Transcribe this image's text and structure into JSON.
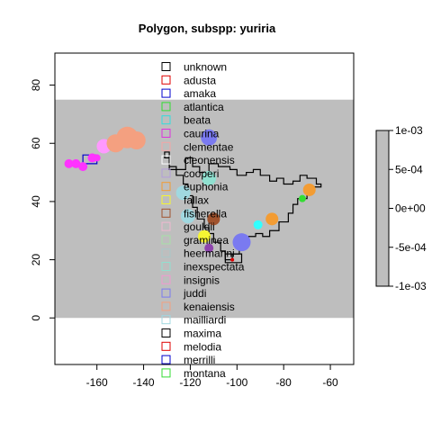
{
  "chart_data": {
    "type": "scatter",
    "title": "Polygon, subspp: yuriria",
    "xlabel": "",
    "ylabel": "",
    "xlim": [
      -178,
      -50
    ],
    "ylim": [
      -16,
      91
    ],
    "x_ticks": [
      -160,
      -140,
      -120,
      -100,
      -80,
      -60
    ],
    "y_ticks": [
      0,
      20,
      40,
      60,
      80
    ],
    "background_band": {
      "y_from": 0,
      "y_to": 75,
      "color": "#bebebe"
    },
    "grid": false,
    "colorbar": {
      "range": [
        -0.001,
        0.001
      ],
      "ticks": [
        "1e-03",
        "5e-04",
        "0e+00",
        "-5e-04",
        "-1e-03"
      ],
      "color": "#bebebe"
    },
    "legend": {
      "placement": "top-center",
      "entries": [
        {
          "label": "unknown",
          "color": "#000000"
        },
        {
          "label": "adusta",
          "color": "#df0000"
        },
        {
          "label": "amaka",
          "color": "#0000cd"
        },
        {
          "label": "atlantica",
          "color": "#33dd33"
        },
        {
          "label": "beata",
          "color": "#33dddd"
        },
        {
          "label": "caurina",
          "color": "#dd33dd"
        },
        {
          "label": "clementae",
          "color": "#f4a6a6"
        },
        {
          "label": "cleonensis",
          "color": "#ffffff"
        },
        {
          "label": "cooperi",
          "color": "#b39ddb"
        },
        {
          "label": "euphonia",
          "color": "#f39c33"
        },
        {
          "label": "fallax",
          "color": "#f5f533"
        },
        {
          "label": "fisherella",
          "color": "#a0522d"
        },
        {
          "label": "gouldii",
          "color": "#f0b8d0"
        },
        {
          "label": "graminea",
          "color": "#a8e0a8"
        },
        {
          "label": "heermanni",
          "color": "#a8c8c8"
        },
        {
          "label": "inexspectata",
          "color": "#90e0d0"
        },
        {
          "label": "insignis",
          "color": "#f09ad0"
        },
        {
          "label": "juddi",
          "color": "#7a7af0"
        },
        {
          "label": "kenaiensis",
          "color": "#f4a080"
        },
        {
          "label": "mailliardi",
          "color": "#a0d8e0"
        },
        {
          "label": "maxima",
          "color": "#000000"
        },
        {
          "label": "melodia",
          "color": "#df0000"
        },
        {
          "label": "merrilli",
          "color": "#0000cd"
        },
        {
          "label": "montana",
          "color": "#33dd33"
        }
      ]
    },
    "series": [
      {
        "color": "#ff33ff",
        "points": [
          [
            -172,
            53,
            5
          ],
          [
            -169,
            53,
            5
          ],
          [
            -166,
            52,
            5
          ],
          [
            -162,
            55,
            5
          ],
          [
            -160,
            55,
            4
          ]
        ]
      },
      {
        "color": "#ff99ff",
        "points": [
          [
            -157,
            59,
            8
          ]
        ]
      },
      {
        "color": "#f4a080",
        "points": [
          [
            -152,
            60,
            10
          ],
          [
            -147,
            62,
            12
          ],
          [
            -143,
            61,
            10
          ]
        ]
      },
      {
        "color": "#7a7af0",
        "points": [
          [
            -112,
            62,
            9
          ],
          [
            -98,
            26,
            10
          ]
        ]
      },
      {
        "color": "#90e0d0",
        "points": [
          [
            -112,
            48,
            8
          ]
        ]
      },
      {
        "color": "#a0d8e0",
        "points": [
          [
            -123,
            43,
            8
          ],
          [
            -121,
            35,
            8
          ]
        ]
      },
      {
        "color": "#a0522d",
        "points": [
          [
            -110,
            34,
            7
          ]
        ]
      },
      {
        "color": "#f5f533",
        "points": [
          [
            -114,
            28,
            7
          ]
        ]
      },
      {
        "color": "#8e44ad",
        "points": [
          [
            -112,
            24,
            5
          ]
        ]
      },
      {
        "color": "#f39c33",
        "points": [
          [
            -85,
            34,
            7
          ],
          [
            -69,
            44,
            7
          ]
        ]
      },
      {
        "color": "#33ffff",
        "points": [
          [
            -91,
            32,
            5
          ]
        ]
      },
      {
        "color": "#33dd33",
        "points": [
          [
            -72,
            41,
            4
          ]
        ]
      },
      {
        "color": "#df0000",
        "points": [
          [
            -102,
            20,
            2
          ]
        ]
      }
    ],
    "polygons": [
      {
        "color": "#000000",
        "points": [
          [
            -131,
            57
          ],
          [
            -129,
            57
          ],
          [
            -129,
            51
          ],
          [
            -122,
            51
          ],
          [
            -122,
            55
          ],
          [
            -119,
            55
          ],
          [
            -119,
            52
          ],
          [
            -116,
            52
          ],
          [
            -116,
            50
          ],
          [
            -112,
            50
          ],
          [
            -112,
            53
          ],
          [
            -108,
            53
          ],
          [
            -108,
            52
          ],
          [
            -103,
            52
          ],
          [
            -103,
            51
          ],
          [
            -100,
            51
          ],
          [
            -100,
            49
          ],
          [
            -96,
            49
          ],
          [
            -96,
            50
          ],
          [
            -93,
            50
          ],
          [
            -93,
            51
          ],
          [
            -90,
            51
          ],
          [
            -90,
            49
          ],
          [
            -86,
            49
          ],
          [
            -86,
            47
          ],
          [
            -83,
            47
          ],
          [
            -83,
            48
          ],
          [
            -80,
            48
          ],
          [
            -80,
            46
          ],
          [
            -76,
            46
          ],
          [
            -76,
            47
          ],
          [
            -73,
            47
          ],
          [
            -73,
            49
          ],
          [
            -70,
            49
          ],
          [
            -70,
            48
          ],
          [
            -66,
            48
          ],
          [
            -66,
            46
          ],
          [
            -64,
            46
          ],
          [
            -64,
            45
          ],
          [
            -67,
            45
          ],
          [
            -67,
            43
          ],
          [
            -70,
            43
          ],
          [
            -70,
            41
          ],
          [
            -74,
            41
          ],
          [
            -74,
            39
          ],
          [
            -76,
            39
          ],
          [
            -76,
            36
          ],
          [
            -78,
            36
          ],
          [
            -78,
            33
          ],
          [
            -82,
            33
          ],
          [
            -82,
            30
          ],
          [
            -86,
            30
          ],
          [
            -86,
            28
          ],
          [
            -89,
            28
          ],
          [
            -89,
            29
          ],
          [
            -92,
            29
          ],
          [
            -92,
            28
          ],
          [
            -95,
            28
          ],
          [
            -95,
            27
          ],
          [
            -97,
            27
          ],
          [
            -97,
            24
          ],
          [
            -99,
            24
          ],
          [
            -99,
            22
          ],
          [
            -102,
            22
          ],
          [
            -102,
            20
          ],
          [
            -105,
            20
          ],
          [
            -105,
            23
          ],
          [
            -107,
            23
          ],
          [
            -107,
            26
          ],
          [
            -110,
            26
          ],
          [
            -110,
            29
          ],
          [
            -112,
            29
          ],
          [
            -112,
            31
          ],
          [
            -114,
            31
          ],
          [
            -114,
            34
          ],
          [
            -117,
            34
          ],
          [
            -117,
            38
          ],
          [
            -119,
            38
          ],
          [
            -119,
            42
          ],
          [
            -121,
            42
          ],
          [
            -121,
            46
          ],
          [
            -123,
            46
          ],
          [
            -123,
            49
          ],
          [
            -126,
            49
          ],
          [
            -126,
            52
          ],
          [
            -129,
            52
          ],
          [
            -129,
            55
          ],
          [
            -131,
            55
          ]
        ]
      },
      {
        "color": "#000000",
        "points": [
          [
            -105,
            22
          ],
          [
            -98,
            22
          ],
          [
            -98,
            19
          ],
          [
            -105,
            19
          ]
        ]
      },
      {
        "color": "#0000cd",
        "points": [
          [
            -166,
            53
          ],
          [
            -160,
            53
          ],
          [
            -160,
            56
          ],
          [
            -166,
            56
          ]
        ]
      }
    ]
  }
}
